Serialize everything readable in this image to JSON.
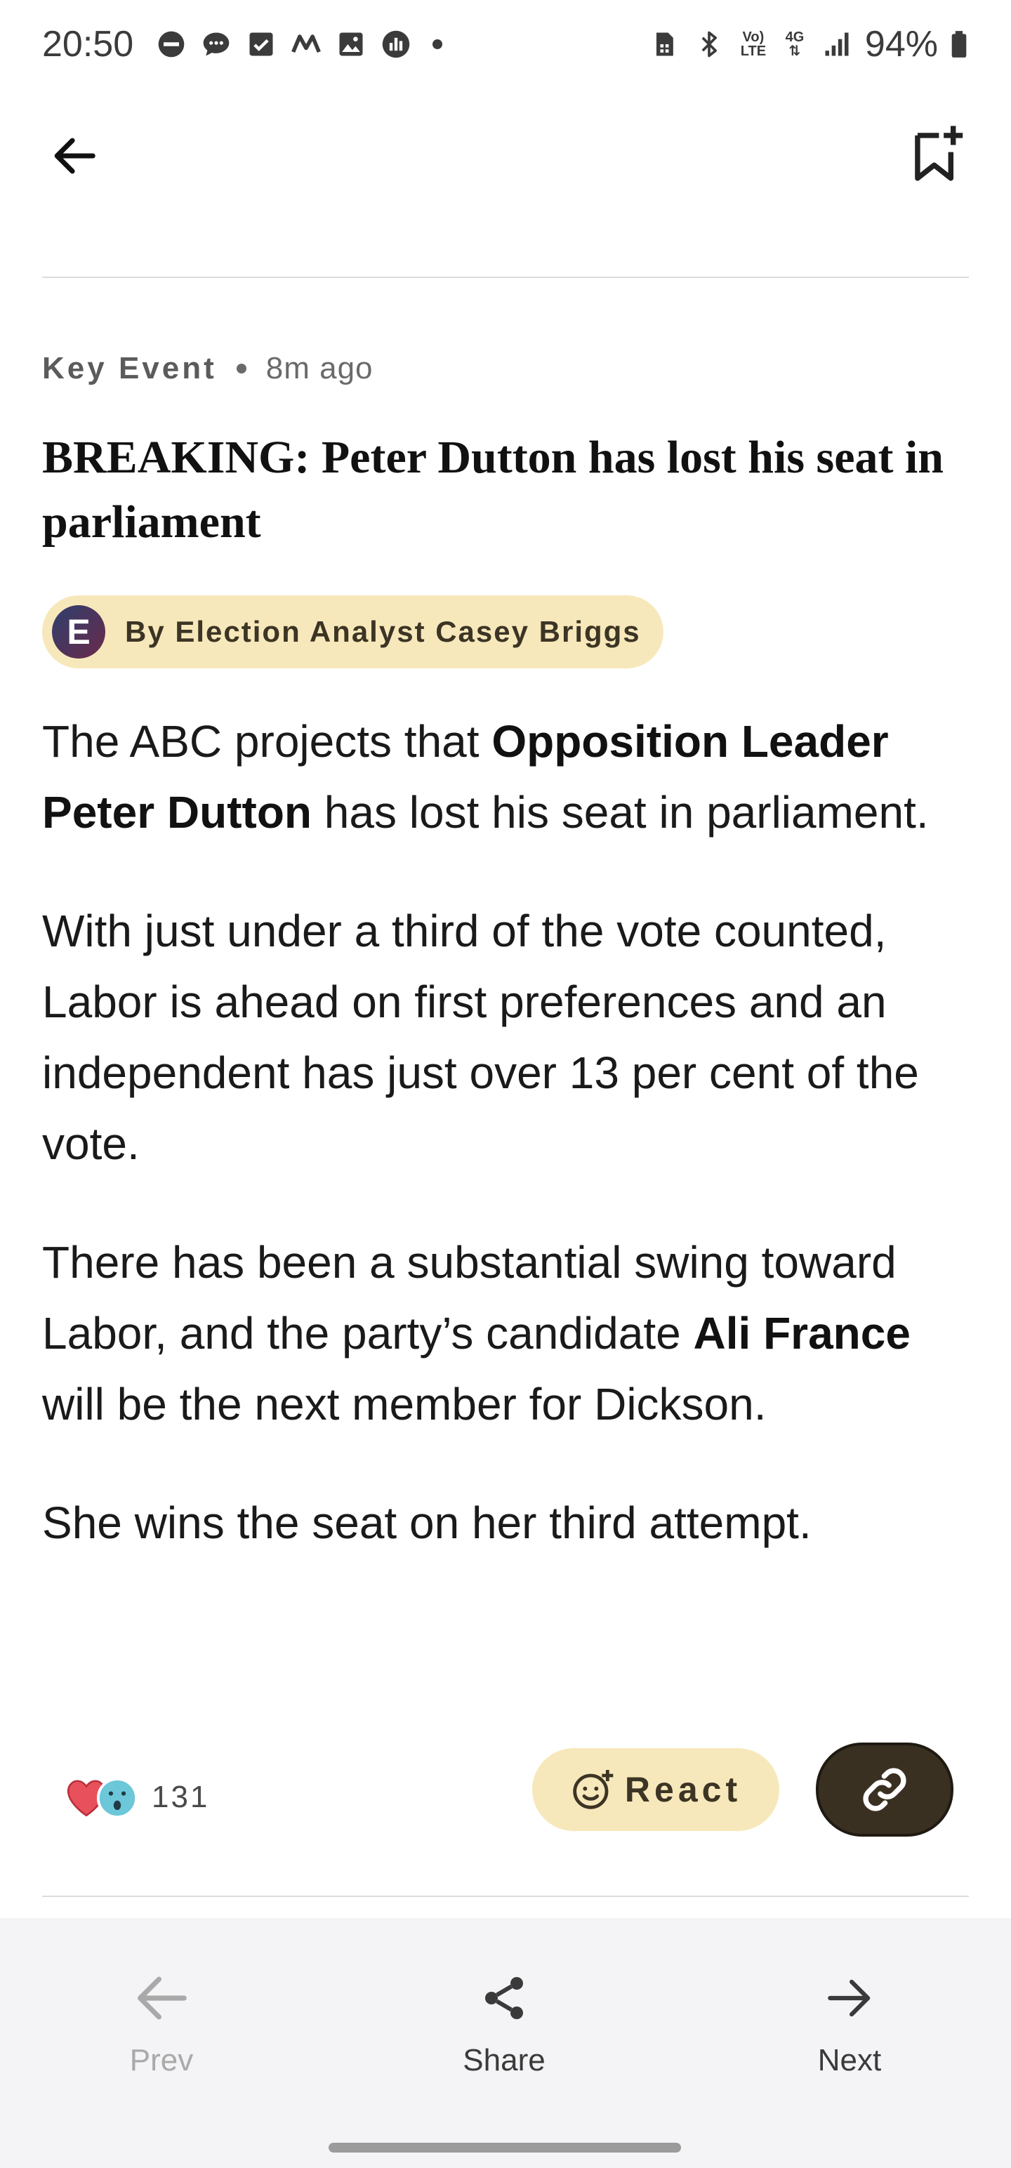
{
  "status_bar": {
    "time": "20:50",
    "left_icons": [
      "do-not-disturb-icon",
      "chat-icon",
      "checkbox-icon",
      "m-app-icon",
      "gallery-icon",
      "activity-icon"
    ],
    "volte_label": "Vo) LTE",
    "network_label": "4G",
    "battery": "94%"
  },
  "top_bar": {
    "back_icon": "arrow-left-icon",
    "bookmark_icon": "bookmark-add-icon"
  },
  "article": {
    "tag": "Key Event",
    "time_ago": "8m ago",
    "headline": "BREAKING: Peter Dutton has lost his seat in parliament",
    "byline": {
      "avatar_letter": "E",
      "text": "By Election Analyst Casey Briggs"
    },
    "paragraphs": [
      {
        "parts": [
          {
            "text": "The ABC projects that ",
            "bold": false
          },
          {
            "text": "Opposition Leader Peter Dutton",
            "bold": true
          },
          {
            "text": " has lost his seat in parliament.",
            "bold": false
          }
        ]
      },
      {
        "parts": [
          {
            "text": "With just under a third of the vote counted, Labor is ahead on first preferences and an independent has just over 13 per cent of the vote.",
            "bold": false
          }
        ]
      },
      {
        "parts": [
          {
            "text": "There has been a substantial swing toward Labor, and the party’s candidate ",
            "bold": false
          },
          {
            "text": "Ali France",
            "bold": true
          },
          {
            "text": " will be the next member for Dickson.",
            "bold": false
          }
        ]
      },
      {
        "parts": [
          {
            "text": "She wins the seat on her third attempt.",
            "bold": false
          }
        ]
      }
    ]
  },
  "reactions": {
    "icons": [
      "heart-icon",
      "surprised-face-icon"
    ],
    "count": "131",
    "react_label": "React",
    "link_icon": "link-icon"
  },
  "bottom_nav": {
    "prev_label": "Prev",
    "share_label": "Share",
    "next_label": "Next"
  },
  "colors": {
    "pill_background": "#f7e8bb",
    "link_button": "#3a3022",
    "heart": "#e8505b",
    "surprised": "#6cc7d9"
  }
}
